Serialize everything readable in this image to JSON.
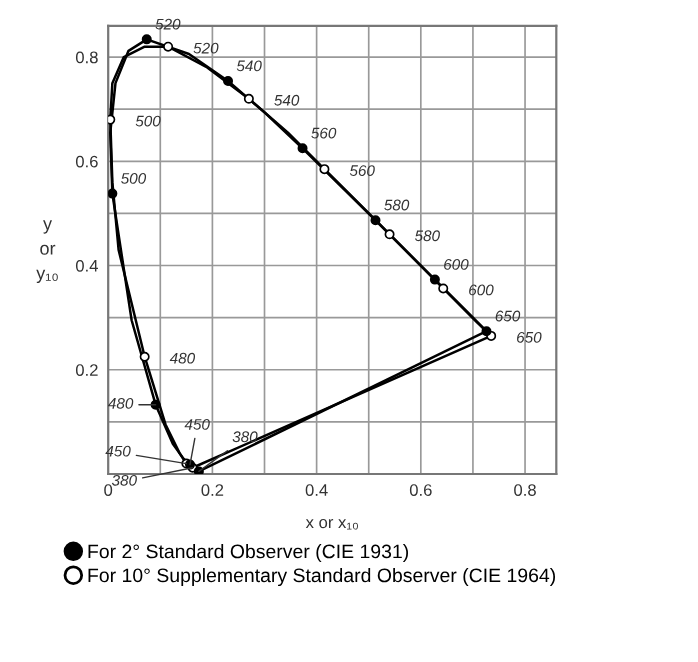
{
  "chart_data": {
    "type": "line",
    "xlabel": "x or x₁₀",
    "ylabel": "y\nor\ny₁₀",
    "xlim": [
      0,
      0.86
    ],
    "ylim": [
      0,
      0.86
    ],
    "xticks": [
      0,
      {
        "value": 0.1,
        "label": null
      },
      0.2,
      {
        "value": 0.3,
        "label": null
      },
      0.4,
      {
        "value": 0.5,
        "label": null
      },
      0.6,
      {
        "value": 0.7,
        "label": null
      },
      0.8
    ],
    "yticks": [
      {
        "value": 0,
        "label": null
      },
      {
        "value": 0.1,
        "label": null
      },
      0.2,
      {
        "value": 0.3,
        "label": null
      },
      0.4,
      {
        "value": 0.5,
        "label": null
      },
      0.6,
      {
        "value": 0.7,
        "label": null
      },
      0.8
    ],
    "grid": true,
    "legend": "bottom",
    "line_style": "solid",
    "series": [
      {
        "color": "#000000",
        "x": [
          0.174,
          0.157,
          0.144,
          0.124,
          0.091,
          0.045,
          0.008,
          0.004,
          0.014,
          0.039,
          0.074,
          0.155,
          0.23,
          0.302,
          0.373,
          0.444,
          0.513,
          0.627,
          0.692,
          0.726
        ],
        "values": [
          0.005,
          0.018,
          0.03,
          0.058,
          0.133,
          0.295,
          0.538,
          0.655,
          0.75,
          0.812,
          0.834,
          0.806,
          0.754,
          0.692,
          0.625,
          0.555,
          0.487,
          0.373,
          0.308,
          0.274
        ]
      },
      {
        "color": "#000000",
        "x": [
          0.726,
          0.174
        ],
        "values": [
          0.274,
          0.005
        ]
      },
      {
        "color": "#000000",
        "x": [
          0.162,
          0.15,
          0.137,
          0.11,
          0.07,
          0.02,
          0.008,
          0.004,
          0.008,
          0.03,
          0.07,
          0.115,
          0.19,
          0.27,
          0.345,
          0.415,
          0.48,
          0.54,
          0.643,
          0.705,
          0.735
        ],
        "values": [
          0.012,
          0.02,
          0.04,
          0.095,
          0.225,
          0.43,
          0.56,
          0.68,
          0.75,
          0.8,
          0.82,
          0.82,
          0.78,
          0.72,
          0.655,
          0.585,
          0.52,
          0.46,
          0.356,
          0.294,
          0.265
        ]
      },
      {
        "color": "#000000",
        "x": [
          0.735,
          0.162
        ],
        "values": [
          0.265,
          0.012
        ]
      },
      {
        "type": "scatter",
        "name": "For 2° Standard Observer (CIE 1931)",
        "color": "#000000",
        "marker": "circle",
        "x": [
          0.174,
          0.157,
          0.091,
          0.008,
          0.074,
          0.23,
          0.373,
          0.513,
          0.627,
          0.726
        ],
        "values": [
          0.005,
          0.018,
          0.133,
          0.538,
          0.834,
          0.754,
          0.625,
          0.487,
          0.373,
          0.274
        ]
      },
      {
        "type": "scatter",
        "name": "For 10° Supplementary Standard Observer (CIE 1964)",
        "color": "#ffffff",
        "marker": "circle",
        "x": [
          0.162,
          0.15,
          0.07,
          0.004,
          0.115,
          0.27,
          0.415,
          0.54,
          0.643,
          0.735
        ],
        "values": [
          0.012,
          0.02,
          0.225,
          0.68,
          0.82,
          0.72,
          0.585,
          0.46,
          0.356,
          0.265
        ]
      }
    ],
    "annotations": [
      {
        "text": "380",
        "x": 0.174,
        "y": 0.005
      },
      {
        "text": "450",
        "x": 0.157,
        "y": 0.018
      },
      {
        "text": "480",
        "x": 0.091,
        "y": 0.133
      },
      {
        "text": "500",
        "x": 0.008,
        "y": 0.538
      },
      {
        "text": "520",
        "x": 0.074,
        "y": 0.834
      },
      {
        "text": "540",
        "x": 0.23,
        "y": 0.754
      },
      {
        "text": "560",
        "x": 0.373,
        "y": 0.625
      },
      {
        "text": "580",
        "x": 0.513,
        "y": 0.487
      },
      {
        "text": "600",
        "x": 0.627,
        "y": 0.373
      },
      {
        "text": "650",
        "x": 0.726,
        "y": 0.274
      },
      {
        "text": "380",
        "x": 0.162,
        "y": 0.012
      },
      {
        "text": "450",
        "x": 0.15,
        "y": 0.02
      },
      {
        "text": "480",
        "x": 0.07,
        "y": 0.225
      },
      {
        "text": "500",
        "x": 0.004,
        "y": 0.68
      },
      {
        "text": "520",
        "x": 0.115,
        "y": 0.82
      },
      {
        "text": "540",
        "x": 0.27,
        "y": 0.72
      },
      {
        "text": "560",
        "x": 0.415,
        "y": 0.585
      },
      {
        "text": "580",
        "x": 0.54,
        "y": 0.46
      },
      {
        "text": "600",
        "x": 0.643,
        "y": 0.356
      },
      {
        "text": "650",
        "x": 0.735,
        "y": 0.265
      }
    ]
  }
}
